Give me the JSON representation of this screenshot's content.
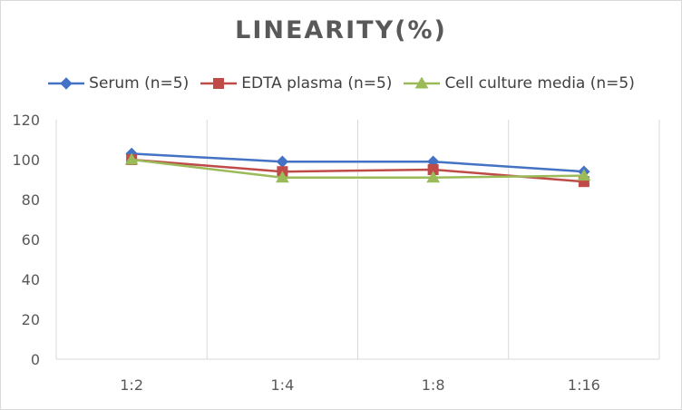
{
  "chart_data": {
    "type": "line",
    "title": "LINEARITY(%)",
    "categories": [
      "1:2",
      "1:4",
      "1:8",
      "1:16"
    ],
    "series": [
      {
        "name": "Serum (n=5)",
        "values": [
          103,
          99,
          99,
          94
        ],
        "color": "#4472c4",
        "marker": "diamond"
      },
      {
        "name": "EDTA plasma (n=5)",
        "values": [
          100,
          94,
          95,
          89
        ],
        "color": "#be4b48",
        "marker": "square"
      },
      {
        "name": "Cell culture media (n=5)",
        "values": [
          100,
          91,
          91,
          92
        ],
        "color": "#9bbb59",
        "marker": "triangle"
      }
    ],
    "ylim": [
      0,
      120
    ],
    "yticks": [
      0,
      20,
      40,
      60,
      80,
      100,
      120
    ],
    "grid": "vertical",
    "legend_position": "top"
  }
}
